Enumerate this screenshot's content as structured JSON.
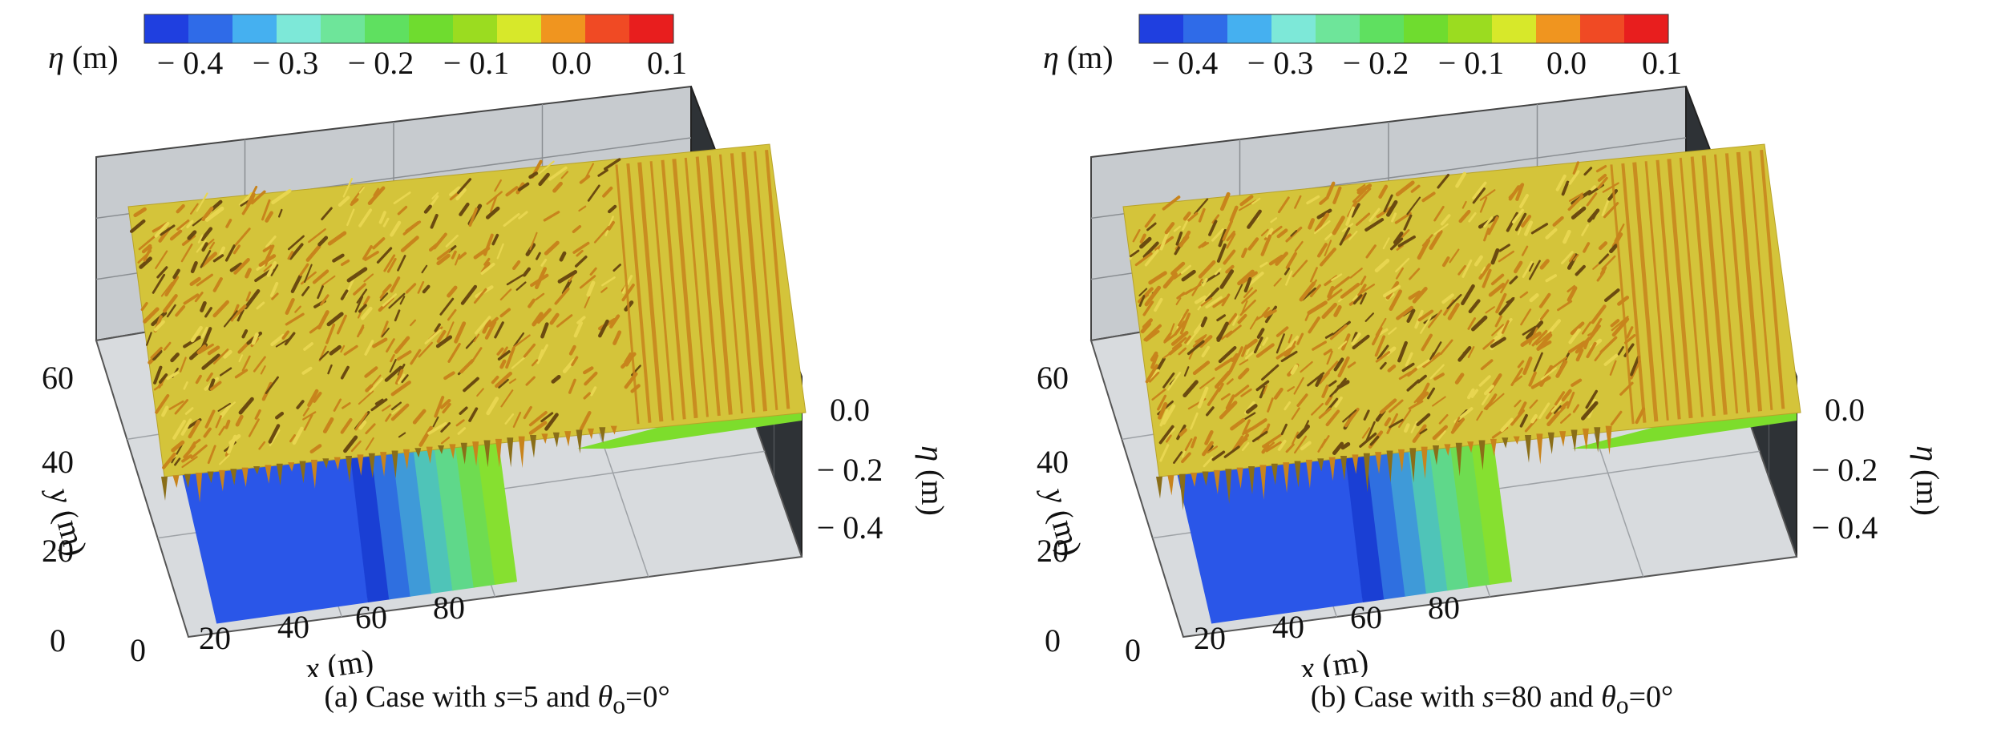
{
  "chart_data": [
    {
      "type": "surface3d",
      "caption": {
        "prefix": "(a) Case with ",
        "s_symbol": "s",
        "s_part": "=5 and ",
        "theta_symbol": "θ",
        "theta_sub": "o",
        "theta_part": "=0°"
      },
      "colorbar": {
        "label_symbol": "η",
        "label_unit": " (m)",
        "tick_labels": [
          "− 0.4",
          "− 0.3",
          "− 0.2",
          "− 0.1",
          "0.0",
          "0.1"
        ],
        "colors": [
          "#1f3fe0",
          "#2f6be8",
          "#45b0f0",
          "#7de8d8",
          "#6ee59a",
          "#5fe060",
          "#6fdc2f",
          "#9bdc20",
          "#d7e82a",
          "#f0951f",
          "#f04a24",
          "#e81e1e"
        ]
      },
      "axes": {
        "x": {
          "label_symbol": "x",
          "label_unit": " (m)",
          "ticks": [
            "0",
            "20",
            "40",
            "60",
            "80"
          ]
        },
        "y": {
          "label_symbol": "y",
          "label_unit": " (m)",
          "ticks": [
            "0",
            "20",
            "40",
            "60"
          ]
        },
        "z": {
          "label_symbol": "η",
          "label_unit": " (m)",
          "ticks": [
            "0.0",
            "− 0.2",
            "− 0.4"
          ]
        }
      },
      "surface_colors": {
        "free_surface": "#d4c43a",
        "ripple": "#c8841c",
        "shadow": "#6b4a10",
        "bottom_deep": "#2a56e8",
        "bottom_slope": [
          "#1a3fd4",
          "#2f6fe0",
          "#3f9ad8",
          "#4fc4b8",
          "#5fd88a",
          "#6fdc50",
          "#86e030"
        ]
      },
      "wave_intensity": 1.0
    },
    {
      "type": "surface3d",
      "caption": {
        "prefix": "(b) Case with ",
        "s_symbol": "s",
        "s_part": "=80 and ",
        "theta_symbol": "θ",
        "theta_sub": "o",
        "theta_part": "=0°"
      },
      "colorbar": {
        "label_symbol": "η",
        "label_unit": " (m)",
        "tick_labels": [
          "− 0.4",
          "− 0.3",
          "− 0.2",
          "− 0.1",
          "0.0",
          "0.1"
        ],
        "colors": [
          "#1f3fe0",
          "#2f6be8",
          "#45b0f0",
          "#7de8d8",
          "#6ee59a",
          "#5fe060",
          "#6fdc2f",
          "#9bdc20",
          "#d7e82a",
          "#f0951f",
          "#f04a24",
          "#e81e1e"
        ]
      },
      "axes": {
        "x": {
          "label_symbol": "x",
          "label_unit": " (m)",
          "ticks": [
            "0",
            "20",
            "40",
            "60",
            "80"
          ]
        },
        "y": {
          "label_symbol": "y",
          "label_unit": " (m)",
          "ticks": [
            "0",
            "20",
            "40",
            "60"
          ]
        },
        "z": {
          "label_symbol": "η",
          "label_unit": " (m)",
          "ticks": [
            "0.0",
            "− 0.2",
            "− 0.4"
          ]
        }
      },
      "surface_colors": {
        "free_surface": "#d4c43a",
        "ripple": "#c8841c",
        "shadow": "#6b4a10",
        "bottom_deep": "#2a56e8",
        "bottom_slope": [
          "#1a3fd4",
          "#2f6fe0",
          "#3f9ad8",
          "#4fc4b8",
          "#5fd88a",
          "#6fdc50",
          "#86e030"
        ]
      },
      "wave_intensity": 1.3
    }
  ]
}
